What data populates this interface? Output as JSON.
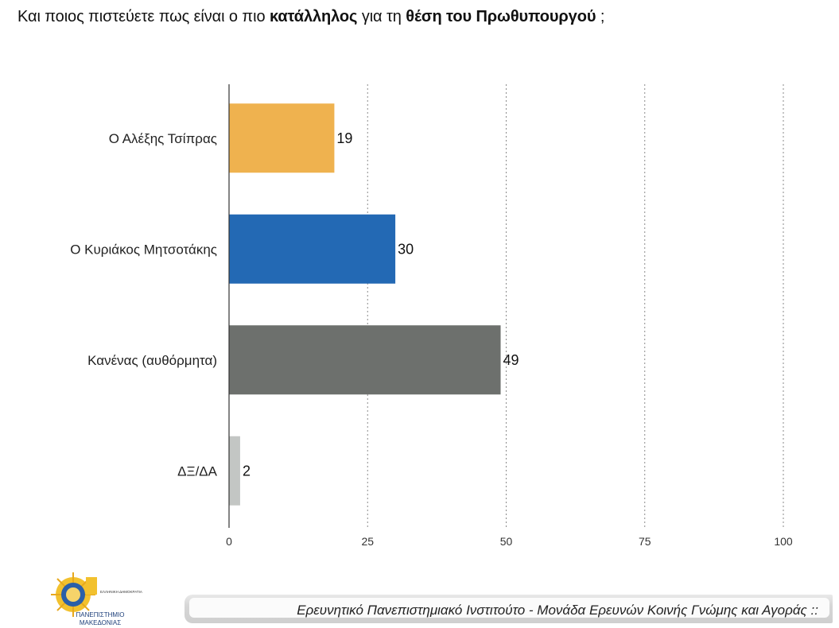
{
  "question": {
    "part1": "Και ποιος πιστεύετε πως είναι ο πιο ",
    "bold1": "κατάλληλος",
    "part2": " για τη ",
    "bold2": "θέση του Πρωθυπουργού",
    "part3": " ;"
  },
  "chart_data": {
    "type": "bar",
    "orientation": "horizontal",
    "categories": [
      "Ο Αλέξης Τσίπρας",
      "Ο Κυριάκος Μητσοτάκης",
      "Κανένας (αυθόρμητα)",
      "ΔΞ/ΔΑ"
    ],
    "values": [
      19,
      30,
      49,
      2
    ],
    "value_labels": [
      "19",
      "30",
      "49",
      "2"
    ],
    "colors": [
      "#efb24f",
      "#2369b4",
      "#6d706d",
      "#c3c6c4"
    ],
    "xlim": [
      0,
      100
    ],
    "xticks": [
      0,
      25,
      50,
      75,
      100
    ],
    "xtick_labels": [
      "0",
      "25",
      "50",
      "75",
      "100"
    ],
    "grid": "vertical dotted"
  },
  "footer": {
    "text": "Ερευνητικό Πανεπιστημιακό Ινστιτούτο - Μονάδα Ερευνών Κοινής Γνώμης και Αγοράς ::"
  },
  "logo": {
    "line1": "ΠΑΝΕΠΙΣΤΗΜΙΟ",
    "line2": "ΜΑΚΕΔΟΝΙΑΣ",
    "side": "ΕΛΛΗΝΙΚΗ ΔΗΜΟΚΡΑΤΙΑ"
  }
}
